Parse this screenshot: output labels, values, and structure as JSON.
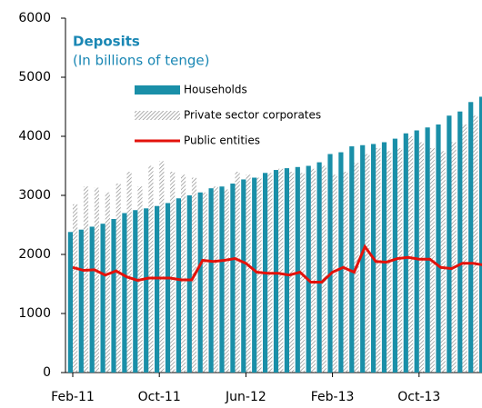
{
  "chart_data": {
    "type": "bar",
    "title": "Deposits",
    "subtitle": "(In billions of tenge)",
    "categories": [
      "Feb-11",
      null,
      null,
      null,
      null,
      null,
      null,
      null,
      "Oct-11",
      null,
      null,
      null,
      null,
      null,
      null,
      null,
      "Jun-12",
      null,
      null,
      null,
      null,
      null,
      null,
      null,
      "Feb-13",
      null,
      null,
      null,
      null,
      null,
      null,
      null,
      "Oct-13",
      null,
      null,
      null,
      null,
      null,
      null
    ],
    "series": [
      {
        "name": "Households",
        "type": "bar",
        "color": "#1a8fa8",
        "values": [
          2380,
          2420,
          2470,
          2520,
          2600,
          2700,
          2750,
          2780,
          2820,
          2870,
          2950,
          3000,
          3050,
          3120,
          3150,
          3200,
          3270,
          3300,
          3380,
          3430,
          3460,
          3480,
          3500,
          3560,
          3700,
          3730,
          3830,
          3850,
          3870,
          3900,
          3960,
          4050,
          4100,
          4150,
          4200,
          4350,
          4420,
          4580,
          4670
        ]
      },
      {
        "name": "Private sector corporates",
        "type": "bar",
        "color": "#8c8c8c",
        "hatch": true,
        "values": [
          2850,
          3150,
          3130,
          3050,
          3200,
          3400,
          3150,
          3500,
          3580,
          3400,
          3350,
          3300,
          3050,
          3150,
          3100,
          3400,
          3350,
          3300,
          3380,
          3450,
          3400,
          3380,
          3450,
          3500,
          3350,
          3400,
          3550,
          3700,
          3800,
          3750,
          3800,
          4000,
          3900,
          3800,
          3750,
          3900,
          4200,
          4350,
          4450
        ]
      },
      {
        "name": "Public entities",
        "type": "line",
        "color": "#e3120b",
        "values": [
          1780,
          1730,
          1740,
          1650,
          1720,
          1620,
          1560,
          1600,
          1600,
          1600,
          1570,
          1570,
          1900,
          1880,
          1900,
          1930,
          1850,
          1700,
          1680,
          1680,
          1650,
          1700,
          1530,
          1530,
          1700,
          1780,
          1700,
          2130,
          1880,
          1870,
          1930,
          1950,
          1920,
          1920,
          1780,
          1760,
          1850,
          1850,
          1820
        ]
      }
    ],
    "ylim": [
      0,
      6000
    ],
    "yticks": [
      0,
      1000,
      2000,
      3000,
      4000,
      5000,
      6000
    ]
  }
}
